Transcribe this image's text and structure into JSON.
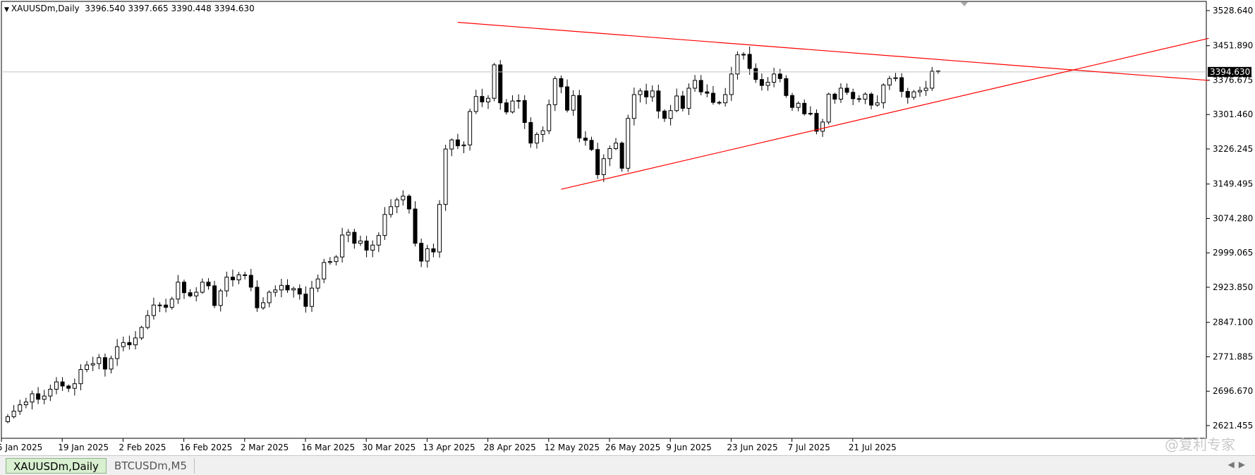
{
  "header": {
    "symbol_timeframe": "XAUUSDm,Daily",
    "ohlc": "3396.540 3397.665 3390.448 3394.630"
  },
  "price_label": "3394.630",
  "watermark": "@复利专家",
  "tabs": [
    {
      "label": "XAUUSDm,Daily",
      "active": true
    },
    {
      "label": "BTCUSDm,M5",
      "active": false
    }
  ],
  "colors": {
    "trendline": "#ff0000",
    "bull_body": "#ffffff",
    "bear_body": "#000000",
    "candle_outline": "#000000",
    "last_price_line": "#c0c0c0",
    "price_label_bg": "#000000"
  },
  "chart_data": {
    "type": "candlestick",
    "symbol": "XAUUSDm",
    "timeframe": "Daily",
    "ylim": [
      2580,
      3560
    ],
    "y_ticks": [
      "3528.640",
      "3451.890",
      "3376.675",
      "3301.460",
      "3226.245",
      "3149.495",
      "3074.280",
      "2999.065",
      "2923.850",
      "2847.100",
      "2771.885",
      "2696.670",
      "2621.455"
    ],
    "x_ticks": [
      "5 Jan 2025",
      "19 Jan 2025",
      "2 Feb 2025",
      "16 Feb 2025",
      "2 Mar 2025",
      "16 Mar 2025",
      "30 Mar 2025",
      "13 Apr 2025",
      "28 Apr 2025",
      "12 May 2025",
      "26 May 2025",
      "9 Jun 2025",
      "23 Jun 2025",
      "7 Jul 2025",
      "21 Jul 2025"
    ],
    "last_price": 3394.63,
    "closes": [
      2641,
      2653,
      2667,
      2673,
      2691,
      2679,
      2686,
      2701,
      2717,
      2708,
      2703,
      2713,
      2744,
      2754,
      2757,
      2770,
      2745,
      2768,
      2794,
      2803,
      2798,
      2813,
      2836,
      2862,
      2885,
      2885,
      2880,
      2898,
      2935,
      2912,
      2905,
      2913,
      2935,
      2927,
      2884,
      2916,
      2946,
      2940,
      2951,
      2950,
      2924,
      2879,
      2890,
      2913,
      2918,
      2928,
      2918,
      2921,
      2909,
      2882,
      2922,
      2942,
      2978,
      2980,
      2990,
      3038,
      3044,
      3020,
      3025,
      3005,
      3016,
      3037,
      3083,
      3100,
      3115,
      3123,
      3095,
      3020,
      2981,
      3008,
      3001,
      3105,
      3226,
      3246,
      3233,
      3235,
      3308,
      3341,
      3329,
      3337,
      3410,
      3327,
      3307,
      3331,
      3332,
      3284,
      3239,
      3258,
      3266,
      3323,
      3380,
      3362,
      3311,
      3343,
      3250,
      3245,
      3225,
      3170,
      3205,
      3227,
      3239,
      3184,
      3293,
      3345,
      3353,
      3340,
      3353,
      3309,
      3293,
      3310,
      3342,
      3315,
      3359,
      3376,
      3351,
      3348,
      3328,
      3327,
      3345,
      3390,
      3432,
      3433,
      3402,
      3378,
      3365,
      3372,
      3390,
      3380,
      3343,
      3317,
      3326,
      3303,
      3304,
      3265,
      3285,
      3346,
      3335,
      3359,
      3350,
      3336,
      3335,
      3346,
      3322,
      3327,
      3366,
      3380,
      3382,
      3352,
      3339,
      3351,
      3354,
      3359,
      3396,
      3394.63
    ]
  }
}
